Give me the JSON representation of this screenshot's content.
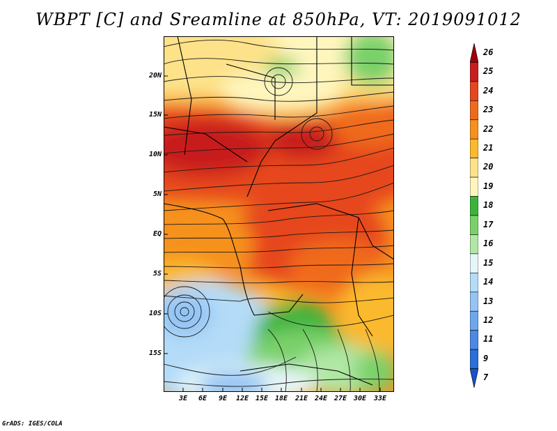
{
  "title": "WBPT [C] and Sreamline at 850hPa, VT: 2019091012",
  "credit": "GrADS: IGES/COLA",
  "y_axis_labels": [
    "20N",
    "15N",
    "10N",
    "5N",
    "EQ",
    "5S",
    "10S",
    "15S"
  ],
  "x_axis_labels": [
    "3E",
    "6E",
    "9E",
    "12E",
    "15E",
    "18E",
    "21E",
    "24E",
    "27E",
    "30E",
    "33E"
  ],
  "colorbar": {
    "labels": [
      "26",
      "25",
      "24",
      "23",
      "22",
      "21",
      "20",
      "19",
      "18",
      "17",
      "16",
      "15",
      "14",
      "13",
      "12",
      "11",
      "9",
      "7"
    ],
    "colors": [
      "#a0000a",
      "#c81e1e",
      "#e6461e",
      "#f06a1e",
      "#f6911e",
      "#fbb92d",
      "#fde28a",
      "#fff6be",
      "#3cb43c",
      "#7ad16a",
      "#b0e7a4",
      "#e6f6f8",
      "#b4dcf8",
      "#94c4f4",
      "#6ea8ec",
      "#4a8ae6",
      "#2a6ed8",
      "#1453c8"
    ]
  }
}
